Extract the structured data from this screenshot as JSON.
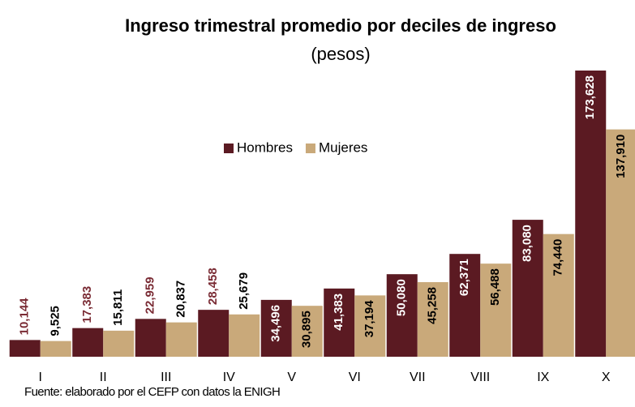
{
  "chart_data": {
    "type": "bar",
    "title": "Ingreso trimestral promedio por deciles de ingreso",
    "subtitle": "(pesos)",
    "source": "Fuente: elaborado por el CEFP con datos la ENIGH",
    "categories": [
      "I",
      "II",
      "III",
      "IV",
      "V",
      "VI",
      "VII",
      "VIII",
      "IX",
      "X"
    ],
    "series": [
      {
        "name": "Hombres",
        "color": "#5b1a22",
        "values": [
          10144,
          17383,
          22959,
          28458,
          34496,
          41383,
          50080,
          62371,
          83080,
          173628
        ],
        "value_labels": [
          "10,144",
          "17,383",
          "22,959",
          "28,458",
          "34,496",
          "41,383",
          "50,080",
          "62,371",
          "83,080",
          "173,628"
        ]
      },
      {
        "name": "Mujeres",
        "color": "#c9a97a",
        "values": [
          9525,
          15811,
          20837,
          25679,
          30895,
          37194,
          45258,
          56488,
          74440,
          137910
        ],
        "value_labels": [
          "9,525",
          "15,811",
          "20,837",
          "25,679",
          "30,895",
          "37,194",
          "45,258",
          "56,488",
          "74,440",
          "137,910"
        ]
      }
    ],
    "legend": "upper center"
  }
}
